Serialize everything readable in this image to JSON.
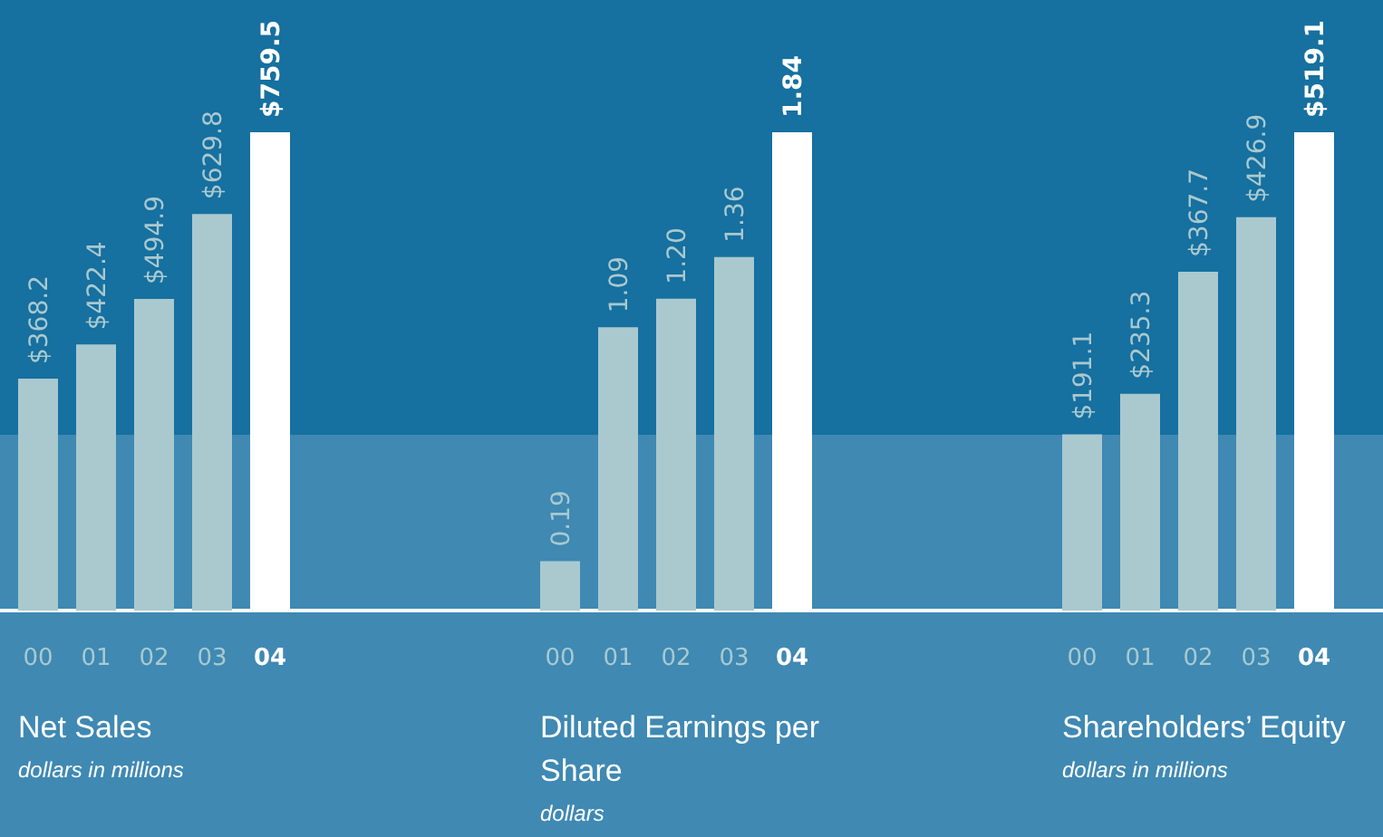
{
  "chart_data": [
    {
      "type": "bar",
      "title": "Net Sales",
      "subtitle": "dollars in millions",
      "categories": [
        "00",
        "01",
        "02",
        "03",
        "04"
      ],
      "values": [
        368.2,
        422.4,
        494.9,
        629.8,
        759.5
      ],
      "value_labels": [
        "$368.2",
        "$422.4",
        "$494.9",
        "$629.8",
        "$759.5"
      ],
      "colors": [
        "#a9c9cf",
        "#a9c9cf",
        "#a9c9cf",
        "#a9c9cf",
        "#ffffff"
      ]
    },
    {
      "type": "bar",
      "title": "Diluted Earnings per Share",
      "subtitle": "dollars",
      "categories": [
        "00",
        "01",
        "02",
        "03",
        "04"
      ],
      "values": [
        0.19,
        1.09,
        1.2,
        1.36,
        1.84
      ],
      "value_labels": [
        "0.19",
        "1.09",
        "1.20",
        "1.36",
        "1.84"
      ],
      "colors": [
        "#a9c9cf",
        "#a9c9cf",
        "#a9c9cf",
        "#a9c9cf",
        "#ffffff"
      ]
    },
    {
      "type": "bar",
      "title": "Shareholders’ Equity",
      "subtitle": "dollars in millions",
      "categories": [
        "00",
        "01",
        "02",
        "03",
        "04"
      ],
      "values": [
        191.1,
        235.3,
        367.7,
        426.9,
        519.1
      ],
      "value_labels": [
        "$191.1",
        "$235.3",
        "$367.7",
        "$426.9",
        "$519.1"
      ],
      "colors": [
        "#a9c9cf",
        "#a9c9cf",
        "#a9c9cf",
        "#a9c9cf",
        "#ffffff"
      ]
    }
  ]
}
